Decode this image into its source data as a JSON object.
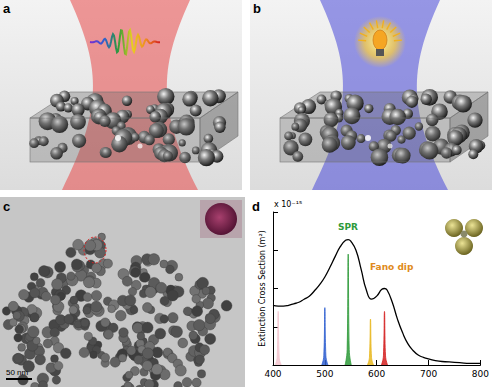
{
  "panels": [
    {
      "label": "a"
    },
    {
      "label": "b"
    },
    {
      "label": "c",
      "scale_bar": "50 nm"
    },
    {
      "label": "d"
    }
  ],
  "chart_data": {
    "type": "line",
    "ylabel": "Extinction Cross Section (m²)",
    "multiplier": "x 10⁻¹⁵",
    "annotations": [
      "SPR",
      "Fano dip"
    ],
    "xlim": [
      400,
      800
    ],
    "xticks": [
      400,
      500,
      600,
      700,
      800
    ],
    "ylim": [
      0,
      2
    ],
    "yticks": [
      0,
      0.5,
      1,
      1.5,
      2
    ],
    "tick_labels": "x",
    "grid": false,
    "series": [
      {
        "type": "area",
        "color": "#f4c6cf",
        "x": [
          404,
          408,
          410,
          412,
          416
        ],
        "values": [
          0,
          0.1,
          0.7,
          0.1,
          0
        ]
      },
      {
        "type": "area",
        "color": "#2f5fd0",
        "x": [
          494,
          498,
          500,
          502,
          506
        ],
        "values": [
          0,
          0.12,
          0.75,
          0.12,
          0
        ]
      },
      {
        "type": "area",
        "color": "#2e9a3a",
        "x": [
          539,
          543,
          545,
          547,
          551
        ],
        "values": [
          0,
          0.2,
          1.45,
          0.2,
          0
        ]
      },
      {
        "type": "area",
        "color": "#e8b820",
        "x": [
          582,
          586,
          588,
          590,
          594
        ],
        "values": [
          0,
          0.1,
          0.6,
          0.1,
          0
        ]
      },
      {
        "type": "area",
        "color": "#d42020",
        "x": [
          609,
          613,
          615,
          617,
          621
        ],
        "values": [
          0,
          0.12,
          0.7,
          0.12,
          0
        ]
      },
      {
        "type": "line",
        "color": "#000000",
        "x": [
          400,
          410,
          420,
          430,
          440,
          450,
          460,
          470,
          480,
          490,
          500,
          510,
          520,
          530,
          540,
          545,
          550,
          560,
          570,
          580,
          590,
          600,
          610,
          615,
          620,
          630,
          640,
          650,
          660,
          670,
          680,
          690,
          700,
          720,
          740,
          760,
          780,
          800
        ],
        "values": [
          0.78,
          0.77,
          0.77,
          0.78,
          0.8,
          0.82,
          0.86,
          0.9,
          0.97,
          1.05,
          1.15,
          1.28,
          1.42,
          1.55,
          1.63,
          1.64,
          1.62,
          1.5,
          1.25,
          0.98,
          0.86,
          0.9,
          0.99,
          1.0,
          0.98,
          0.82,
          0.6,
          0.42,
          0.28,
          0.19,
          0.13,
          0.1,
          0.08,
          0.05,
          0.04,
          0.03,
          0.02,
          0.02
        ]
      }
    ]
  }
}
